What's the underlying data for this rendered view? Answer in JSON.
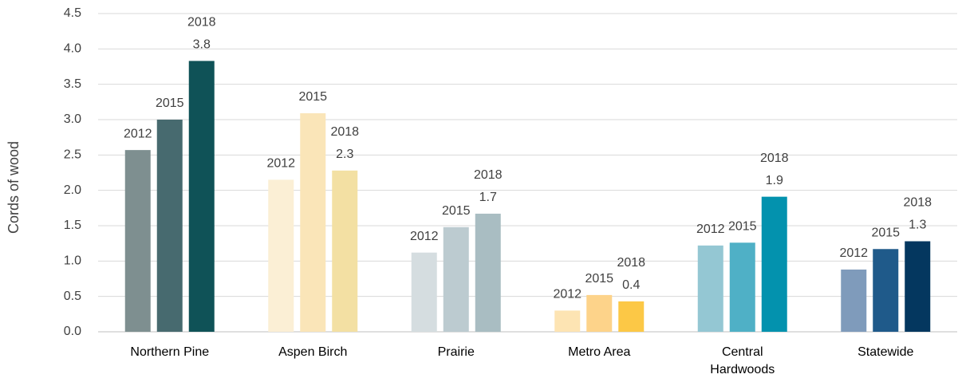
{
  "chart_data": {
    "type": "bar",
    "y_label": "Cords of wood",
    "categories": [
      "Northern Pine",
      "Aspen Birch",
      "Prairie",
      "Metro Area",
      "Central Hardwoods",
      "Statewide"
    ],
    "series": [
      {
        "name": "2012",
        "colors": [
          "#7e8f90",
          "#fbefd5",
          "#d5dde0",
          "#fde4b3",
          "#94c7d3",
          "#7f9bbb"
        ],
        "values": [
          2.57,
          2.15,
          1.12,
          0.3,
          1.22,
          0.88
        ]
      },
      {
        "name": "2015",
        "colors": [
          "#476a6f",
          "#fae5b8",
          "#bccbd0",
          "#fdd38a",
          "#4fb0c6",
          "#1f5a8a"
        ],
        "values": [
          3.0,
          3.09,
          1.48,
          0.52,
          1.26,
          1.17
        ]
      },
      {
        "name": "2018",
        "colors": [
          "#0f5257",
          "#f3e0a3",
          "#a9bdc2",
          "#fcc846",
          "#0392ae",
          "#04375f"
        ],
        "values": [
          3.83,
          2.28,
          1.67,
          0.43,
          1.91,
          1.28
        ],
        "value_labels": [
          "3.8",
          "2.3",
          "1.7",
          "0.4",
          "1.9",
          "1.3"
        ]
      }
    ],
    "ylim": [
      0,
      4.5
    ],
    "yticks": [
      {
        "value": 0,
        "label": "0.0"
      },
      0.5,
      {
        "value": 1,
        "label": "1.0"
      },
      1.5,
      {
        "value": 2,
        "label": "2.0"
      },
      2.5,
      {
        "value": 3,
        "label": "3.0"
      },
      3.5,
      {
        "value": 4,
        "label": "4.0"
      },
      4.5
    ],
    "grid": true
  }
}
